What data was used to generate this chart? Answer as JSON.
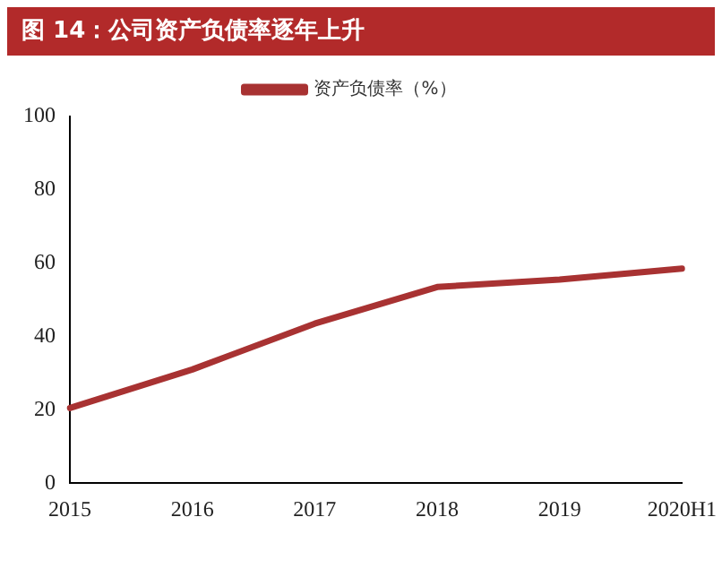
{
  "chart_data": {
    "type": "line",
    "title": "图 14：公司资产负债率逐年上升",
    "categories": [
      "2015",
      "2016",
      "2017",
      "2018",
      "2019",
      "2020H1"
    ],
    "series": [
      {
        "name": "资产负债率（%）",
        "color": "#a83232",
        "values": [
          20.5,
          31,
          43.5,
          53.5,
          55.5,
          58.5
        ]
      }
    ],
    "ylim": [
      0,
      100
    ],
    "yticks": [
      0,
      20,
      40,
      60,
      80,
      100
    ],
    "grid": false,
    "legend": "top",
    "marker": "none",
    "line_style": "solid"
  }
}
